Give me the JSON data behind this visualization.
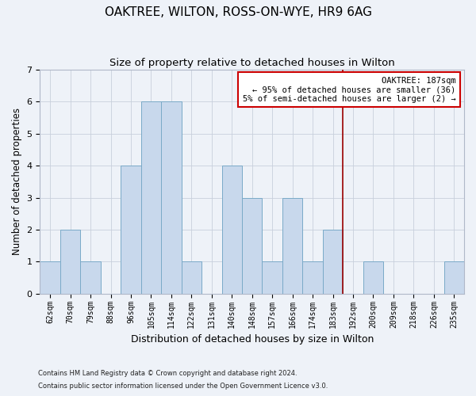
{
  "title": "OAKTREE, WILTON, ROSS-ON-WYE, HR9 6AG",
  "subtitle": "Size of property relative to detached houses in Wilton",
  "xlabel": "Distribution of detached houses by size in Wilton",
  "ylabel": "Number of detached properties",
  "categories": [
    "62sqm",
    "70sqm",
    "79sqm",
    "88sqm",
    "96sqm",
    "105sqm",
    "114sqm",
    "122sqm",
    "131sqm",
    "140sqm",
    "148sqm",
    "157sqm",
    "166sqm",
    "174sqm",
    "183sqm",
    "192sqm",
    "200sqm",
    "209sqm",
    "218sqm",
    "226sqm",
    "235sqm"
  ],
  "values": [
    1,
    2,
    1,
    0,
    4,
    6,
    6,
    1,
    0,
    4,
    3,
    1,
    3,
    1,
    2,
    0,
    1,
    0,
    0,
    0,
    1
  ],
  "bar_color": "#c8d8ec",
  "bar_edge_color": "#7aaac8",
  "grid_color": "#c8d0dc",
  "background_color": "#eef2f8",
  "vline_color": "#990000",
  "annotation_title": "OAKTREE: 187sqm",
  "annotation_line1": "← 95% of detached houses are smaller (36)",
  "annotation_line2": "5% of semi-detached houses are larger (2) →",
  "annotation_box_color": "#ffffff",
  "annotation_border_color": "#cc0000",
  "ylim": [
    0,
    7
  ],
  "yticks": [
    0,
    1,
    2,
    3,
    4,
    5,
    6,
    7
  ],
  "footnote1": "Contains HM Land Registry data © Crown copyright and database right 2024.",
  "footnote2": "Contains public sector information licensed under the Open Government Licence v3.0.",
  "title_fontsize": 11,
  "subtitle_fontsize": 9.5,
  "tick_fontsize": 7,
  "ylabel_fontsize": 8.5,
  "xlabel_fontsize": 9,
  "annotation_fontsize": 7.5,
  "footnote_fontsize": 6
}
